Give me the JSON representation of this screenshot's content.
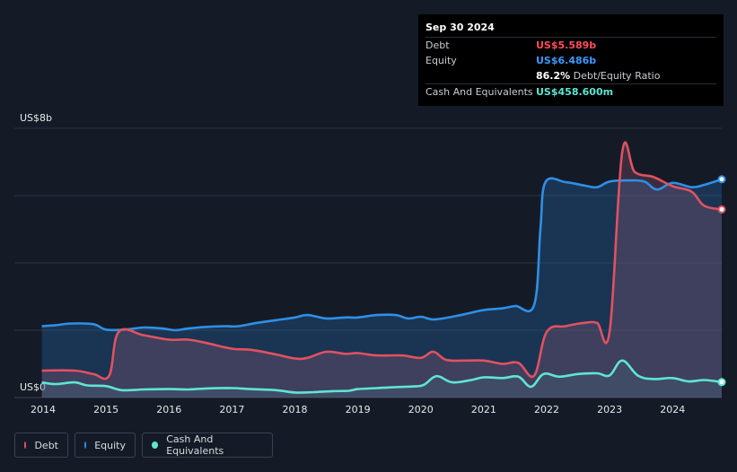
{
  "tooltip": {
    "date": "Sep 30 2024",
    "debt_label": "Debt",
    "debt_value": "US$5.589b",
    "equity_label": "Equity",
    "equity_value": "US$6.486b",
    "ratio_value": "86.2%",
    "ratio_label": "Debt/Equity Ratio",
    "cash_label": "Cash And Equivalents",
    "cash_value": "US$458.600m"
  },
  "legend": {
    "debt": "Debt",
    "equity": "Equity",
    "cash": "Cash And Equivalents"
  },
  "colors": {
    "debt": "#e05260",
    "equity": "#2f8fe6",
    "cash": "#5ee6d0",
    "background": "#151b26"
  },
  "chart_data": {
    "type": "area",
    "y_top_label": "US$8b",
    "y_bottom_label": "US$0",
    "ylim": [
      0,
      8
    ],
    "xlim": [
      2014,
      2024.78
    ],
    "x_ticks": [
      "2014",
      "2015",
      "2016",
      "2017",
      "2018",
      "2019",
      "2020",
      "2021",
      "2022",
      "2023",
      "2024"
    ],
    "grid": true,
    "legend_position": "bottom-left",
    "series": [
      {
        "name": "Debt",
        "unit": "US$b",
        "points": [
          [
            2013.98,
            0.8
          ],
          [
            2014.5,
            0.8
          ],
          [
            2014.8,
            0.7
          ],
          [
            2015.05,
            0.65
          ],
          [
            2015.2,
            1.95
          ],
          [
            2015.6,
            1.85
          ],
          [
            2016.0,
            1.72
          ],
          [
            2016.3,
            1.72
          ],
          [
            2016.6,
            1.62
          ],
          [
            2017.0,
            1.45
          ],
          [
            2017.3,
            1.42
          ],
          [
            2017.7,
            1.28
          ],
          [
            2018.0,
            1.16
          ],
          [
            2018.2,
            1.18
          ],
          [
            2018.5,
            1.36
          ],
          [
            2018.8,
            1.3
          ],
          [
            2019.0,
            1.32
          ],
          [
            2019.3,
            1.25
          ],
          [
            2019.7,
            1.25
          ],
          [
            2020.0,
            1.18
          ],
          [
            2020.2,
            1.36
          ],
          [
            2020.4,
            1.12
          ],
          [
            2020.7,
            1.1
          ],
          [
            2021.0,
            1.1
          ],
          [
            2021.3,
            1.0
          ],
          [
            2021.55,
            1.03
          ],
          [
            2021.8,
            0.65
          ],
          [
            2022.0,
            1.95
          ],
          [
            2022.3,
            2.12
          ],
          [
            2022.6,
            2.22
          ],
          [
            2022.8,
            2.22
          ],
          [
            2023.0,
            1.98
          ],
          [
            2023.2,
            7.3
          ],
          [
            2023.4,
            6.7
          ],
          [
            2023.7,
            6.55
          ],
          [
            2024.0,
            6.28
          ],
          [
            2024.3,
            6.12
          ],
          [
            2024.5,
            5.7
          ],
          [
            2024.78,
            5.589
          ]
        ]
      },
      {
        "name": "Equity",
        "unit": "US$b",
        "points": [
          [
            2013.98,
            2.12
          ],
          [
            2014.2,
            2.15
          ],
          [
            2014.45,
            2.2
          ],
          [
            2014.8,
            2.18
          ],
          [
            2015.0,
            2.02
          ],
          [
            2015.3,
            2.02
          ],
          [
            2015.6,
            2.08
          ],
          [
            2015.9,
            2.05
          ],
          [
            2016.1,
            2.0
          ],
          [
            2016.3,
            2.05
          ],
          [
            2016.6,
            2.1
          ],
          [
            2016.9,
            2.12
          ],
          [
            2017.1,
            2.12
          ],
          [
            2017.4,
            2.22
          ],
          [
            2017.7,
            2.3
          ],
          [
            2018.0,
            2.38
          ],
          [
            2018.2,
            2.45
          ],
          [
            2018.5,
            2.35
          ],
          [
            2018.8,
            2.38
          ],
          [
            2019.0,
            2.38
          ],
          [
            2019.3,
            2.45
          ],
          [
            2019.6,
            2.45
          ],
          [
            2019.8,
            2.35
          ],
          [
            2020.0,
            2.4
          ],
          [
            2020.2,
            2.32
          ],
          [
            2020.5,
            2.4
          ],
          [
            2020.8,
            2.52
          ],
          [
            2021.0,
            2.6
          ],
          [
            2021.3,
            2.65
          ],
          [
            2021.5,
            2.72
          ],
          [
            2021.8,
            2.75
          ],
          [
            2021.9,
            5.0
          ],
          [
            2021.98,
            6.4
          ],
          [
            2022.3,
            6.4
          ],
          [
            2022.6,
            6.3
          ],
          [
            2022.8,
            6.25
          ],
          [
            2023.0,
            6.42
          ],
          [
            2023.3,
            6.45
          ],
          [
            2023.55,
            6.42
          ],
          [
            2023.75,
            6.18
          ],
          [
            2024.0,
            6.38
          ],
          [
            2024.3,
            6.25
          ],
          [
            2024.5,
            6.32
          ],
          [
            2024.78,
            6.486
          ]
        ]
      },
      {
        "name": "Cash And Equivalents",
        "unit": "US$b",
        "points": [
          [
            2013.98,
            0.45
          ],
          [
            2014.2,
            0.4
          ],
          [
            2014.5,
            0.45
          ],
          [
            2014.7,
            0.36
          ],
          [
            2015.0,
            0.34
          ],
          [
            2015.25,
            0.22
          ],
          [
            2015.6,
            0.24
          ],
          [
            2016.0,
            0.25
          ],
          [
            2016.3,
            0.24
          ],
          [
            2016.6,
            0.27
          ],
          [
            2017.0,
            0.28
          ],
          [
            2017.3,
            0.25
          ],
          [
            2017.7,
            0.22
          ],
          [
            2018.0,
            0.15
          ],
          [
            2018.3,
            0.16
          ],
          [
            2018.6,
            0.19
          ],
          [
            2018.85,
            0.2
          ],
          [
            2019.0,
            0.25
          ],
          [
            2019.3,
            0.28
          ],
          [
            2019.6,
            0.31
          ],
          [
            2019.9,
            0.33
          ],
          [
            2020.05,
            0.38
          ],
          [
            2020.2,
            0.6
          ],
          [
            2020.3,
            0.62
          ],
          [
            2020.5,
            0.45
          ],
          [
            2020.8,
            0.52
          ],
          [
            2021.0,
            0.6
          ],
          [
            2021.3,
            0.58
          ],
          [
            2021.55,
            0.62
          ],
          [
            2021.75,
            0.32
          ],
          [
            2021.95,
            0.7
          ],
          [
            2022.2,
            0.62
          ],
          [
            2022.5,
            0.7
          ],
          [
            2022.8,
            0.72
          ],
          [
            2023.0,
            0.66
          ],
          [
            2023.2,
            1.1
          ],
          [
            2023.45,
            0.65
          ],
          [
            2023.7,
            0.55
          ],
          [
            2024.0,
            0.58
          ],
          [
            2024.25,
            0.48
          ],
          [
            2024.5,
            0.52
          ],
          [
            2024.78,
            0.4586
          ]
        ]
      }
    ]
  }
}
